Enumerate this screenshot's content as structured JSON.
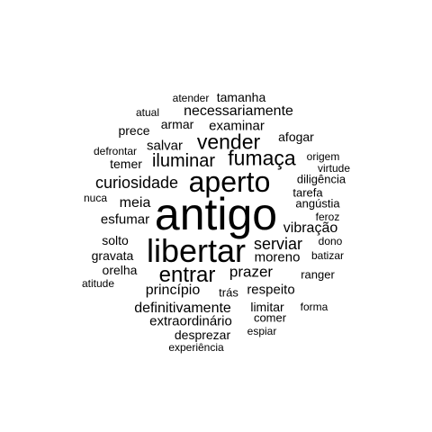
{
  "cloud": {
    "text_color": "#000000",
    "background_color": "#ffffff",
    "words": [
      {
        "id": "antigo",
        "text": "antigo"
      },
      {
        "id": "libertar",
        "text": "libertar"
      },
      {
        "id": "aperto",
        "text": "aperto"
      },
      {
        "id": "fumaca",
        "text": "fumaça"
      },
      {
        "id": "vender",
        "text": "vender"
      },
      {
        "id": "entrar",
        "text": "entrar"
      },
      {
        "id": "iluminar",
        "text": "iluminar"
      },
      {
        "id": "curiosidade",
        "text": "curiosidade"
      },
      {
        "id": "serviar",
        "text": "serviar"
      },
      {
        "id": "prazer",
        "text": "prazer"
      },
      {
        "id": "vibracao",
        "text": "vibração"
      },
      {
        "id": "moreno",
        "text": "moreno"
      },
      {
        "id": "principio",
        "text": "princípio"
      },
      {
        "id": "necessariamente",
        "text": "necessariamente"
      },
      {
        "id": "definitivamente",
        "text": "definitivamente"
      },
      {
        "id": "extraordinario",
        "text": "extraordinário"
      },
      {
        "id": "meia",
        "text": "meia"
      },
      {
        "id": "esfumar",
        "text": "esfumar"
      },
      {
        "id": "examinar",
        "text": "examinar"
      },
      {
        "id": "respeito",
        "text": "respeito"
      },
      {
        "id": "salvar",
        "text": "salvar"
      },
      {
        "id": "desprezar",
        "text": "desprezar"
      },
      {
        "id": "limitar",
        "text": "limitar"
      },
      {
        "id": "armar",
        "text": "armar"
      },
      {
        "id": "tamanha",
        "text": "tamanha"
      },
      {
        "id": "afogar",
        "text": "afogar"
      },
      {
        "id": "prece",
        "text": "prece"
      },
      {
        "id": "temer",
        "text": "temer"
      },
      {
        "id": "solto",
        "text": "solto"
      },
      {
        "id": "gravata",
        "text": "gravata"
      },
      {
        "id": "orelha",
        "text": "orelha"
      },
      {
        "id": "tras",
        "text": "trás"
      },
      {
        "id": "comer",
        "text": "comer"
      },
      {
        "id": "diligencia",
        "text": "diligência"
      },
      {
        "id": "angustia",
        "text": "angústia"
      },
      {
        "id": "tarefa",
        "text": "tarefa"
      },
      {
        "id": "ranger",
        "text": "ranger"
      },
      {
        "id": "atender",
        "text": "atender"
      },
      {
        "id": "atual",
        "text": "atual"
      },
      {
        "id": "defrontar",
        "text": "defrontar"
      },
      {
        "id": "nuca",
        "text": "nuca"
      },
      {
        "id": "atitude",
        "text": "atitude"
      },
      {
        "id": "origem",
        "text": "origem"
      },
      {
        "id": "virtude",
        "text": "virtude"
      },
      {
        "id": "feroz",
        "text": "feroz"
      },
      {
        "id": "dono",
        "text": "dono"
      },
      {
        "id": "batizar",
        "text": "batizar"
      },
      {
        "id": "forma",
        "text": "forma"
      },
      {
        "id": "espiar",
        "text": "espiar"
      },
      {
        "id": "experiencia",
        "text": "experiência"
      }
    ]
  }
}
